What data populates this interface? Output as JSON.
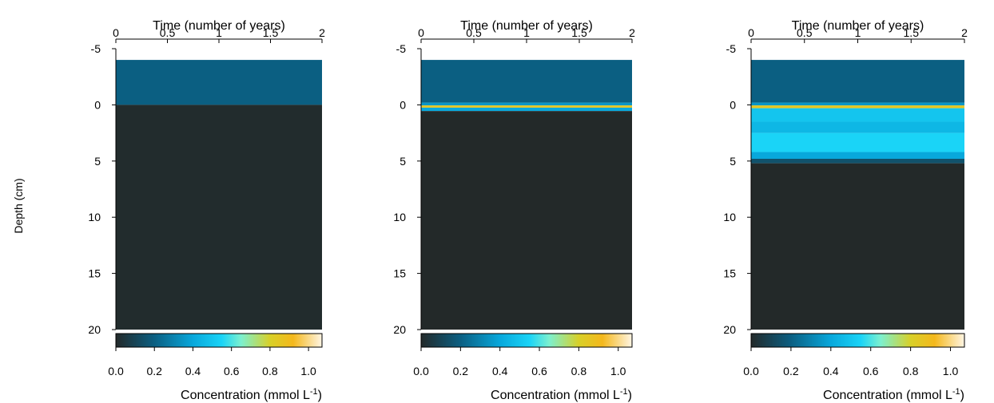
{
  "chart_data": {
    "type": "heatmap",
    "ylabel": "Depth (cm)",
    "panels": [
      {
        "id": "panel-1",
        "xlabel": "Time (number of years)",
        "x_ticks": [
          "0",
          "0.5",
          "1",
          "1.5",
          "2"
        ],
        "x_tick_values": [
          0,
          0.5,
          1,
          1.5,
          2
        ],
        "xlim": [
          0,
          2
        ],
        "y_ticks": [
          "-5",
          "0",
          "5",
          "10",
          "15",
          "20"
        ],
        "y_tick_values": [
          -5,
          0,
          5,
          10,
          15,
          20
        ],
        "ylim": [
          -5,
          20
        ],
        "bands": [
          {
            "from": -4,
            "to": 0,
            "concentration": 0.2
          },
          {
            "from": 0,
            "to": 20,
            "concentration": 0.01
          }
        ],
        "colorbar": {
          "title": "Concentration (mmol L",
          "title_sup": "-1",
          "title_end": ")",
          "ticks": [
            "0.0",
            "0.2",
            "0.4",
            "0.6",
            "0.8",
            "1.0"
          ],
          "tick_values": [
            0,
            0.2,
            0.4,
            0.6,
            0.8,
            1.0
          ],
          "range": [
            0,
            1.07
          ]
        }
      },
      {
        "id": "panel-2",
        "xlabel": "Time (number of years)",
        "x_ticks": [
          "0",
          "0.5",
          "1",
          "1.5",
          "2"
        ],
        "x_tick_values": [
          0,
          0.5,
          1,
          1.5,
          2
        ],
        "xlim": [
          0,
          2
        ],
        "y_ticks": [
          "-5",
          "0",
          "5",
          "10",
          "15",
          "20"
        ],
        "y_tick_values": [
          -5,
          0,
          5,
          10,
          15,
          20
        ],
        "ylim": [
          -5,
          20
        ],
        "bands": [
          {
            "from": -4,
            "to": -0.2,
            "concentration": 0.2
          },
          {
            "from": -0.2,
            "to": 0.05,
            "concentration": 0.35
          },
          {
            "from": 0.05,
            "to": 0.25,
            "concentration": 0.85
          },
          {
            "from": 0.25,
            "to": 0.55,
            "concentration": 0.4
          },
          {
            "from": 0.55,
            "to": 20,
            "concentration": 0.0
          }
        ],
        "colorbar": {
          "title": "Concentration (mmol L",
          "title_sup": "-1",
          "title_end": ")",
          "ticks": [
            "0.0",
            "0.2",
            "0.4",
            "0.6",
            "0.8",
            "1.0"
          ],
          "tick_values": [
            0,
            0.2,
            0.4,
            0.6,
            0.8,
            1.0
          ],
          "range": [
            0,
            1.07
          ]
        }
      },
      {
        "id": "panel-3",
        "xlabel": "Time (number of years)",
        "x_ticks": [
          "0",
          "0.5",
          "1",
          "1.5",
          "2"
        ],
        "x_tick_values": [
          0,
          0.5,
          1,
          1.5,
          2
        ],
        "xlim": [
          0,
          2
        ],
        "y_ticks": [
          "-5",
          "0",
          "5",
          "10",
          "15",
          "20"
        ],
        "y_tick_values": [
          -5,
          0,
          5,
          10,
          15,
          20
        ],
        "ylim": [
          -5,
          20
        ],
        "bands": [
          {
            "from": -4,
            "to": -0.2,
            "concentration": 0.2
          },
          {
            "from": -0.2,
            "to": 0.05,
            "concentration": 0.35
          },
          {
            "from": 0.05,
            "to": 0.3,
            "concentration": 0.85
          },
          {
            "from": 0.3,
            "to": 1.5,
            "concentration": 0.5
          },
          {
            "from": 1.5,
            "to": 2.5,
            "concentration": 0.45
          },
          {
            "from": 2.5,
            "to": 4.2,
            "concentration": 0.55
          },
          {
            "from": 4.2,
            "to": 4.8,
            "concentration": 0.4
          },
          {
            "from": 4.8,
            "to": 5.2,
            "concentration": 0.15
          },
          {
            "from": 5.2,
            "to": 20,
            "concentration": 0.0
          }
        ],
        "colorbar": {
          "title": "Concentration (mmol L",
          "title_sup": "-1",
          "title_end": ")",
          "ticks": [
            "0.0",
            "0.2",
            "0.4",
            "0.6",
            "0.8",
            "1.0"
          ],
          "tick_values": [
            0,
            0.2,
            0.4,
            0.6,
            0.8,
            1.0
          ],
          "range": [
            0,
            1.07
          ]
        }
      }
    ],
    "colormap": [
      {
        "value": 0.0,
        "color": "#232929"
      },
      {
        "value": 0.2,
        "color": "#0b5f82"
      },
      {
        "value": 0.4,
        "color": "#08a8dc"
      },
      {
        "value": 0.55,
        "color": "#1ad4f7"
      },
      {
        "value": 0.65,
        "color": "#7cf0cf"
      },
      {
        "value": 0.8,
        "color": "#d8d028"
      },
      {
        "value": 0.92,
        "color": "#f4b81c"
      },
      {
        "value": 1.07,
        "color": "#fff5e4"
      }
    ]
  }
}
